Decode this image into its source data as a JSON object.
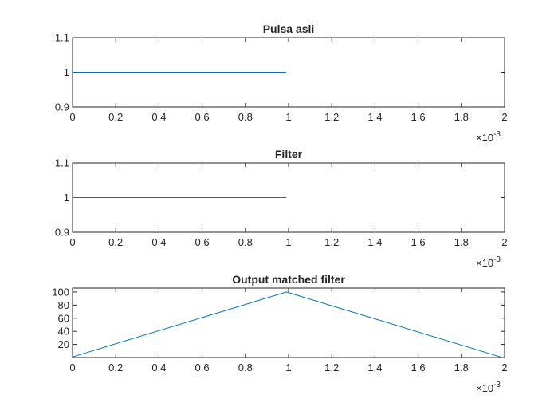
{
  "chart_data": [
    {
      "type": "line",
      "title": "Pulsa asli",
      "xlabel": "",
      "ylabel": "",
      "xlim": [
        0,
        0.002
      ],
      "ylim": [
        0.9,
        1.1
      ],
      "x_ticks": [
        0,
        0.0002,
        0.0004,
        0.0006,
        0.0008,
        0.001,
        0.0012,
        0.0014,
        0.0016,
        0.0018,
        0.002
      ],
      "x_tick_labels": [
        "0",
        "0.2",
        "0.4",
        "0.6",
        "0.8",
        "1",
        "1.2",
        "1.4",
        "1.6",
        "1.8",
        "2"
      ],
      "x_exponent": {
        "base": "×10",
        "power": "-3"
      },
      "y_ticks": [
        0.9,
        1,
        1.1
      ],
      "y_tick_labels": [
        "0.9",
        "1",
        "1.1"
      ],
      "grid": false,
      "series": [
        {
          "x": [
            0,
            0.00099
          ],
          "y": [
            1,
            1
          ],
          "color": "#0072BD"
        }
      ]
    },
    {
      "type": "line",
      "title": "Filter",
      "xlabel": "",
      "ylabel": "",
      "xlim": [
        0,
        0.002
      ],
      "ylim": [
        0.9,
        1.1
      ],
      "x_ticks": [
        0,
        0.0002,
        0.0004,
        0.0006,
        0.0008,
        0.001,
        0.0012,
        0.0014,
        0.0016,
        0.0018,
        0.002
      ],
      "x_tick_labels": [
        "0",
        "0.2",
        "0.4",
        "0.6",
        "0.8",
        "1",
        "1.2",
        "1.4",
        "1.6",
        "1.8",
        "2"
      ],
      "x_exponent": {
        "base": "×10",
        "power": "-3"
      },
      "y_ticks": [
        0.9,
        1,
        1.1
      ],
      "y_tick_labels": [
        "0.9",
        "1",
        "1.1"
      ],
      "grid": false,
      "series": [
        {
          "x": [
            0,
            0.00099
          ],
          "y": [
            1,
            1
          ],
          "color": "#0072BD"
        }
      ]
    },
    {
      "type": "line",
      "title": "Output matched filter",
      "xlabel": "",
      "ylabel": "",
      "xlim": [
        0,
        0.002
      ],
      "ylim": [
        0,
        106
      ],
      "x_ticks": [
        0,
        0.0002,
        0.0004,
        0.0006,
        0.0008,
        0.001,
        0.0012,
        0.0014,
        0.0016,
        0.0018,
        0.002
      ],
      "x_tick_labels": [
        "0",
        "0.2",
        "0.4",
        "0.6",
        "0.8",
        "1",
        "1.2",
        "1.4",
        "1.6",
        "1.8",
        "2"
      ],
      "x_exponent": {
        "base": "×10",
        "power": "-3"
      },
      "y_ticks": [
        20,
        40,
        60,
        80,
        100
      ],
      "y_tick_labels": [
        "20",
        "40",
        "60",
        "80",
        "100"
      ],
      "grid": false,
      "series": [
        {
          "x": [
            0,
            0.00099,
            0.00198
          ],
          "y": [
            1,
            100,
            1
          ],
          "color": "#0072BD"
        }
      ]
    }
  ]
}
